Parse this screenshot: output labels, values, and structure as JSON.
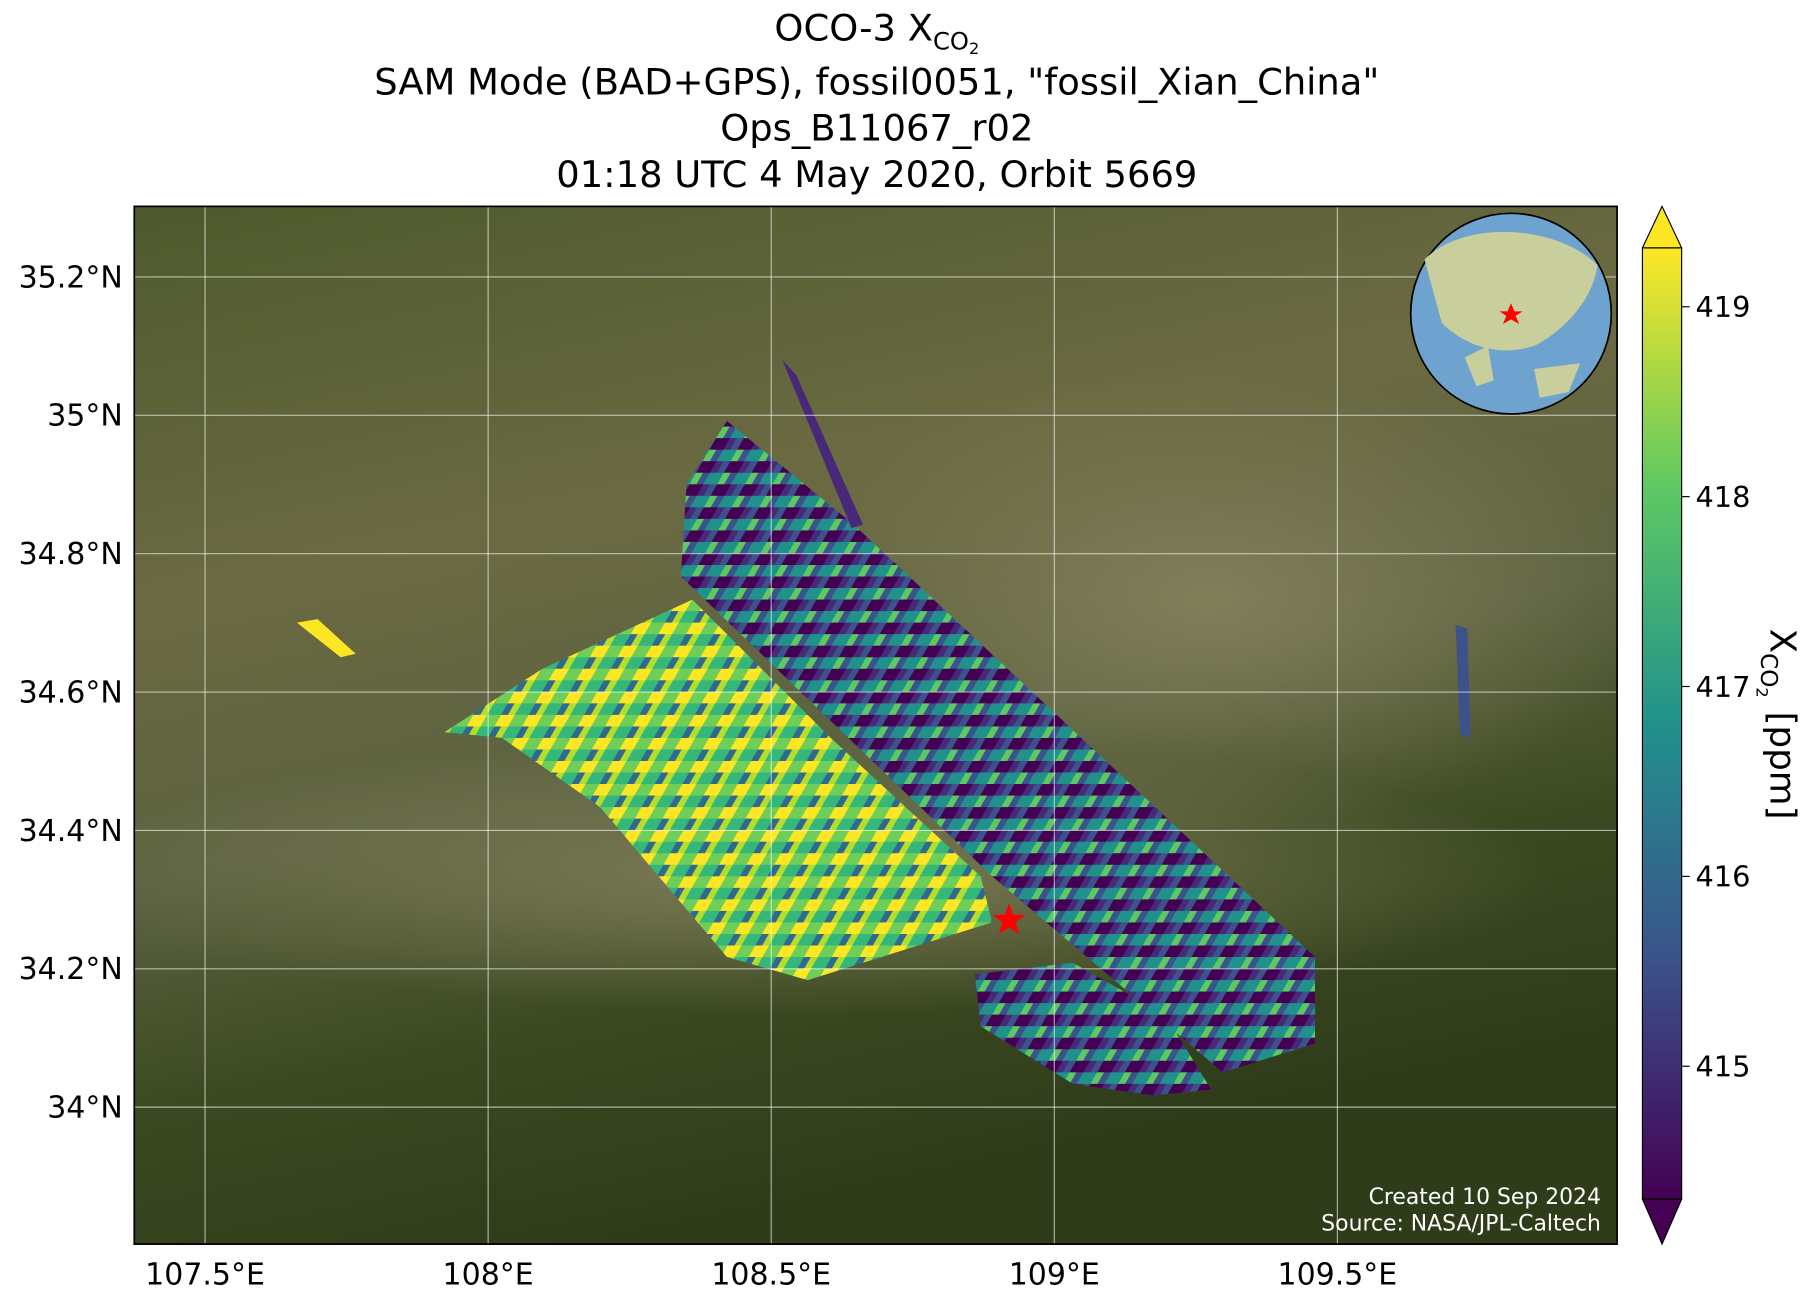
{
  "map": {
    "title_main": "OCO-3 X",
    "title_sub": "CO",
    "title_subsub": "2",
    "subtitle_lines": [
      "SAM Mode (BAD+GPS), fossil0051, \"fossil_Xian_China\"",
      "Ops_B11067_r02",
      "01:18 UTC 4 May 2020, Orbit 5669"
    ],
    "xlim": [
      107.375,
      109.994
    ],
    "ylim": [
      33.802,
      35.302
    ],
    "xticks": [
      {
        "value": 107.5,
        "label": "107.5°E"
      },
      {
        "value": 108,
        "label": "108°E"
      },
      {
        "value": 108.5,
        "label": "108.5°E"
      },
      {
        "value": 109,
        "label": "109°E"
      },
      {
        "value": 109.5,
        "label": "109.5°E"
      }
    ],
    "yticks": [
      {
        "value": 34,
        "label": "34°N"
      },
      {
        "value": 34.2,
        "label": "34.2°N"
      },
      {
        "value": 34.4,
        "label": "34.4°N"
      },
      {
        "value": 34.6,
        "label": "34.6°N"
      },
      {
        "value": 34.8,
        "label": "34.8°N"
      },
      {
        "value": 35,
        "label": "35°N"
      },
      {
        "value": 35.2,
        "label": "35.2°N"
      }
    ],
    "grid": true,
    "site": {
      "lon": 108.92,
      "lat": 34.27,
      "color": "#ff0000"
    },
    "colorbar": {
      "lim": [
        414.3,
        419.31
      ],
      "ticks": [
        415,
        416,
        417,
        418,
        419
      ],
      "label_main": "X",
      "label_sub": "CO",
      "label_subsub": "2",
      "label_unit": "[ppm]"
    },
    "credits": [
      "Created 10 Sep 2024",
      "Source: NASA/JPL-Caltech"
    ]
  }
}
